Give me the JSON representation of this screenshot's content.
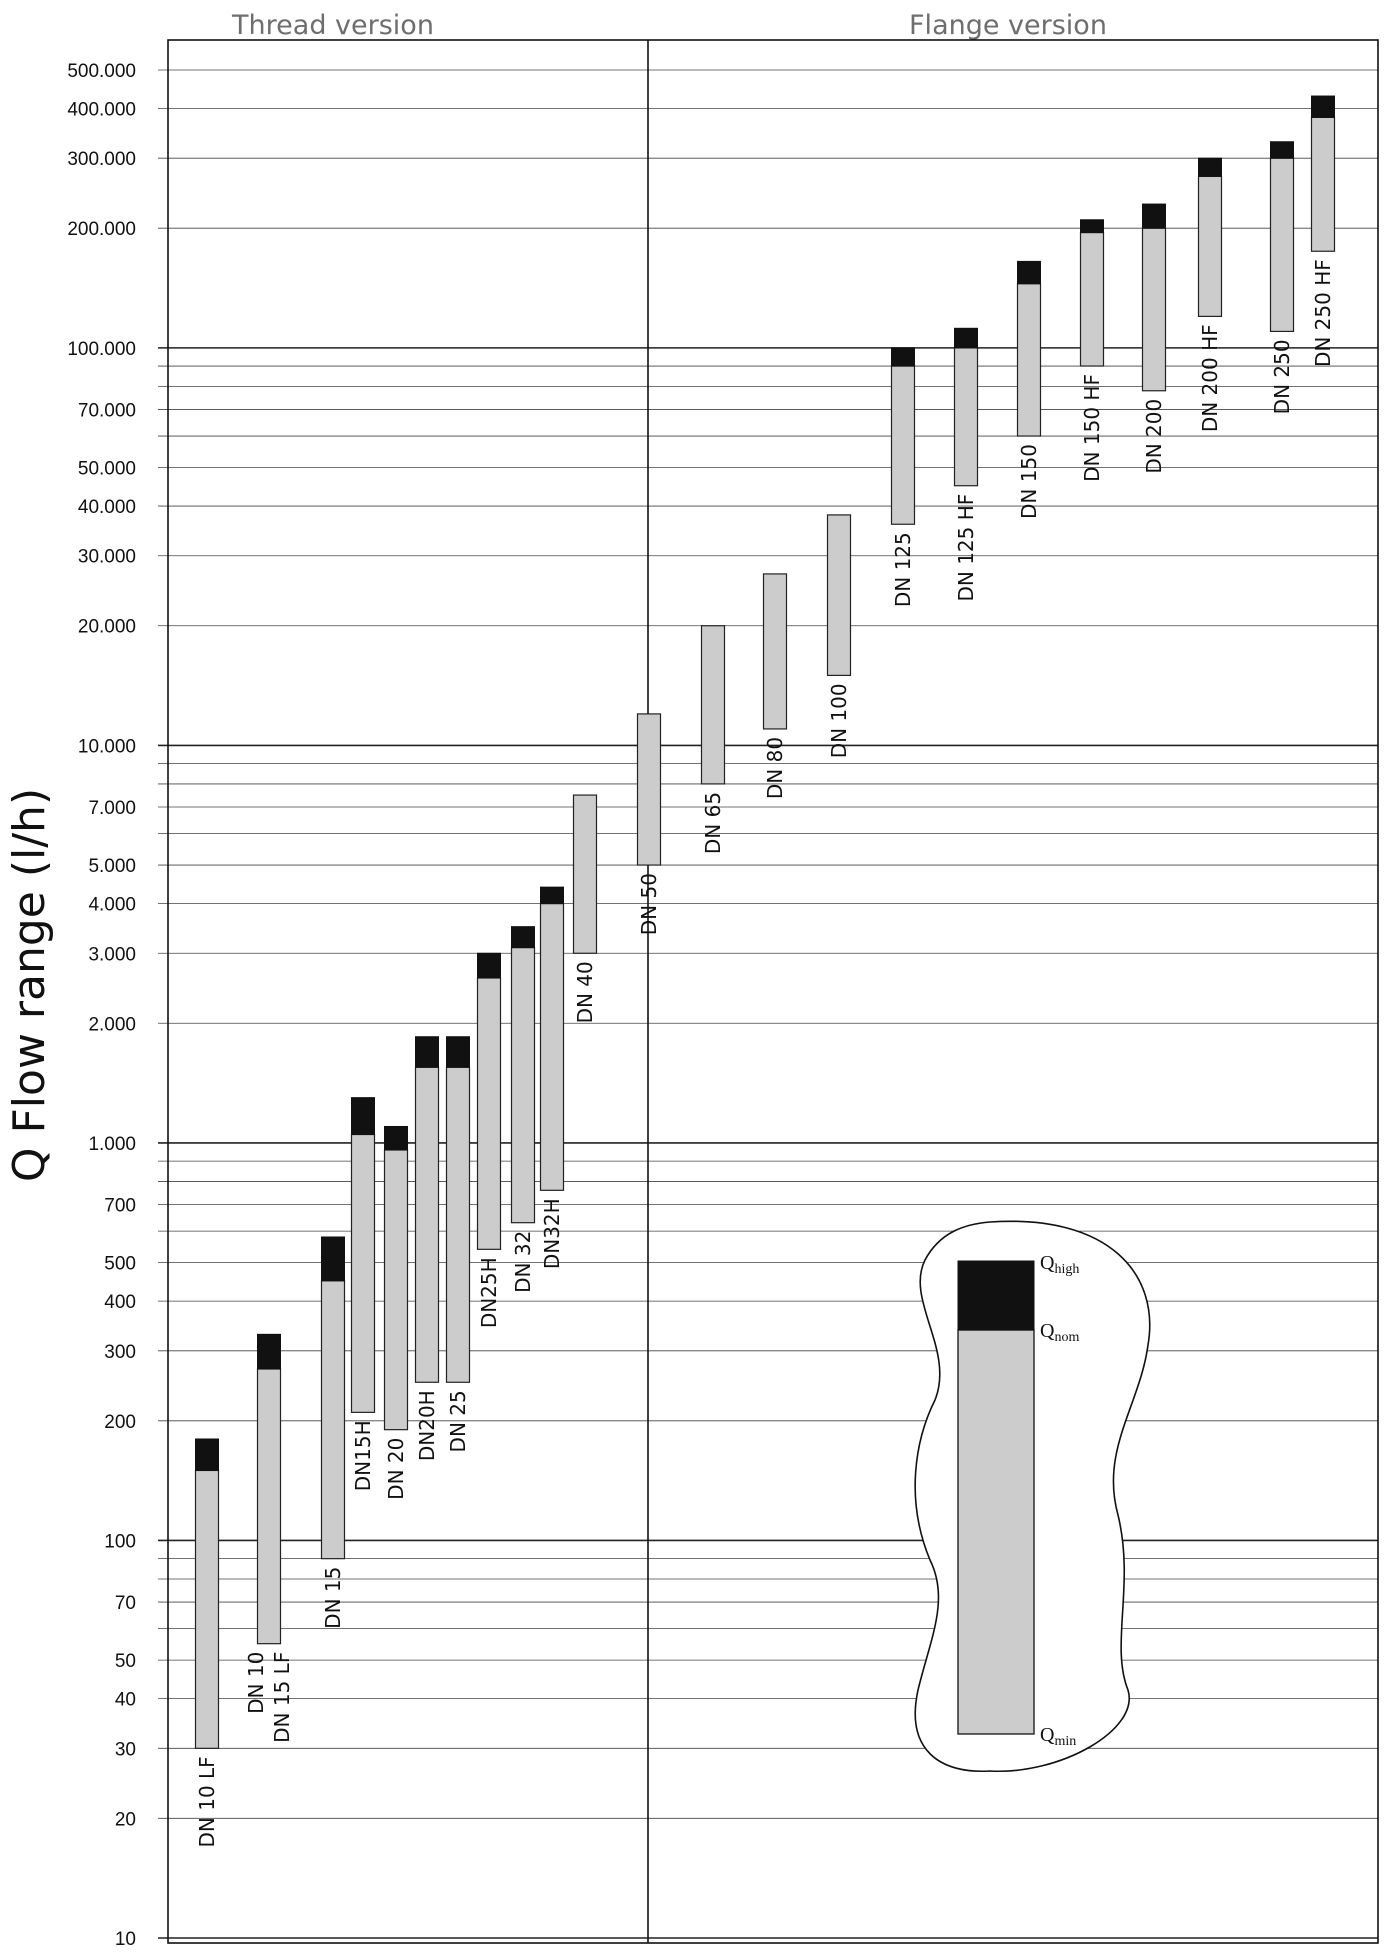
{
  "chart_data": {
    "type": "bar",
    "subtype": "floating-range",
    "sections": [
      "Thread version",
      "Flange version"
    ],
    "ylabel": "Q Flow range (l/h)",
    "yscale": "log",
    "ylim": [
      10,
      600000
    ],
    "grid": true,
    "ytick_values": [
      10,
      20,
      30,
      40,
      50,
      70,
      100,
      200,
      300,
      400,
      500,
      700,
      1000,
      2000,
      3000,
      4000,
      5000,
      7000,
      10000,
      20000,
      30000,
      40000,
      50000,
      70000,
      100000,
      200000,
      300000,
      400000,
      500000
    ],
    "ytick_labels": [
      "10",
      "20",
      "30",
      "40",
      "50",
      "70",
      "100",
      "200",
      "300",
      "400",
      "500",
      "700",
      "1.000",
      "2.000",
      "3.000",
      "4.000",
      "5.000",
      "7.000",
      "10.000",
      "20.000",
      "30.000",
      "40.000",
      "50.000",
      "70.000",
      "100.000",
      "200.000",
      "300.000",
      "400.000",
      "500.000"
    ],
    "series": [
      {
        "name": "Qmin–Qnom",
        "color": "#cccccc"
      },
      {
        "name": "Qnom–Qhigh",
        "color": "#111111"
      }
    ],
    "bars": [
      {
        "label": "DN 10 LF",
        "section": 0,
        "qmin": 30,
        "qnom": 150,
        "qhigh": 180
      },
      {
        "label": "DN 10\nDN 15 LF",
        "section": 0,
        "qmin": 55,
        "qnom": 270,
        "qhigh": 330
      },
      {
        "label": "DN 15",
        "section": 0,
        "qmin": 90,
        "qnom": 450,
        "qhigh": 580
      },
      {
        "label": "DN15H",
        "section": 0,
        "qmin": 210,
        "qnom": 1050,
        "qhigh": 1300
      },
      {
        "label": "DN 20",
        "section": 0,
        "qmin": 190,
        "qnom": 960,
        "qhigh": 1100
      },
      {
        "label": "DN20H",
        "section": 0,
        "qmin": 250,
        "qnom": 1550,
        "qhigh": 1850
      },
      {
        "label": "DN 25",
        "section": 0,
        "qmin": 250,
        "qnom": 1550,
        "qhigh": 1850
      },
      {
        "label": "DN25H",
        "section": 0,
        "qmin": 540,
        "qnom": 2600,
        "qhigh": 3000
      },
      {
        "label": "DN 32",
        "section": 0,
        "qmin": 630,
        "qnom": 3100,
        "qhigh": 3500
      },
      {
        "label": "DN32H",
        "section": 0,
        "qmin": 760,
        "qnom": 4000,
        "qhigh": 4400
      },
      {
        "label": "DN 40",
        "section": 0,
        "qmin": 3000,
        "qnom": 7500,
        "qhigh": 7500
      },
      {
        "label": "DN 50",
        "section": 1,
        "qmin": 5000,
        "qnom": 12000,
        "qhigh": 12000
      },
      {
        "label": "DN 65",
        "section": 1,
        "qmin": 8000,
        "qnom": 20000,
        "qhigh": 20000
      },
      {
        "label": "DN 80",
        "section": 1,
        "qmin": 11000,
        "qnom": 27000,
        "qhigh": 27000
      },
      {
        "label": "DN 100",
        "section": 1,
        "qmin": 15000,
        "qnom": 38000,
        "qhigh": 38000
      },
      {
        "label": "DN 125",
        "section": 1,
        "qmin": 36000,
        "qnom": 90000,
        "qhigh": 100000
      },
      {
        "label": "DN 125 HF",
        "section": 1,
        "qmin": 45000,
        "qnom": 100000,
        "qhigh": 112000
      },
      {
        "label": "DN 150",
        "section": 1,
        "qmin": 60000,
        "qnom": 145000,
        "qhigh": 165000
      },
      {
        "label": "DN 150 HF",
        "section": 1,
        "qmin": 90000,
        "qnom": 195000,
        "qhigh": 210000
      },
      {
        "label": "DN 200",
        "section": 1,
        "qmin": 78000,
        "qnom": 200000,
        "qhigh": 230000
      },
      {
        "label": "DN 200 HF",
        "section": 1,
        "qmin": 120000,
        "qnom": 270000,
        "qhigh": 300000
      },
      {
        "label": "DN 250",
        "section": 1,
        "qmin": 110000,
        "qnom": 300000,
        "qhigh": 330000
      },
      {
        "label": "DN 250 HF",
        "section": 1,
        "qmin": 175000,
        "qnom": 380000,
        "qhigh": 430000
      }
    ],
    "legend": {
      "labels": [
        {
          "main": "Q",
          "sub": "high"
        },
        {
          "main": "Q",
          "sub": "nom"
        },
        {
          "main": "Q",
          "sub": "min"
        }
      ]
    }
  }
}
